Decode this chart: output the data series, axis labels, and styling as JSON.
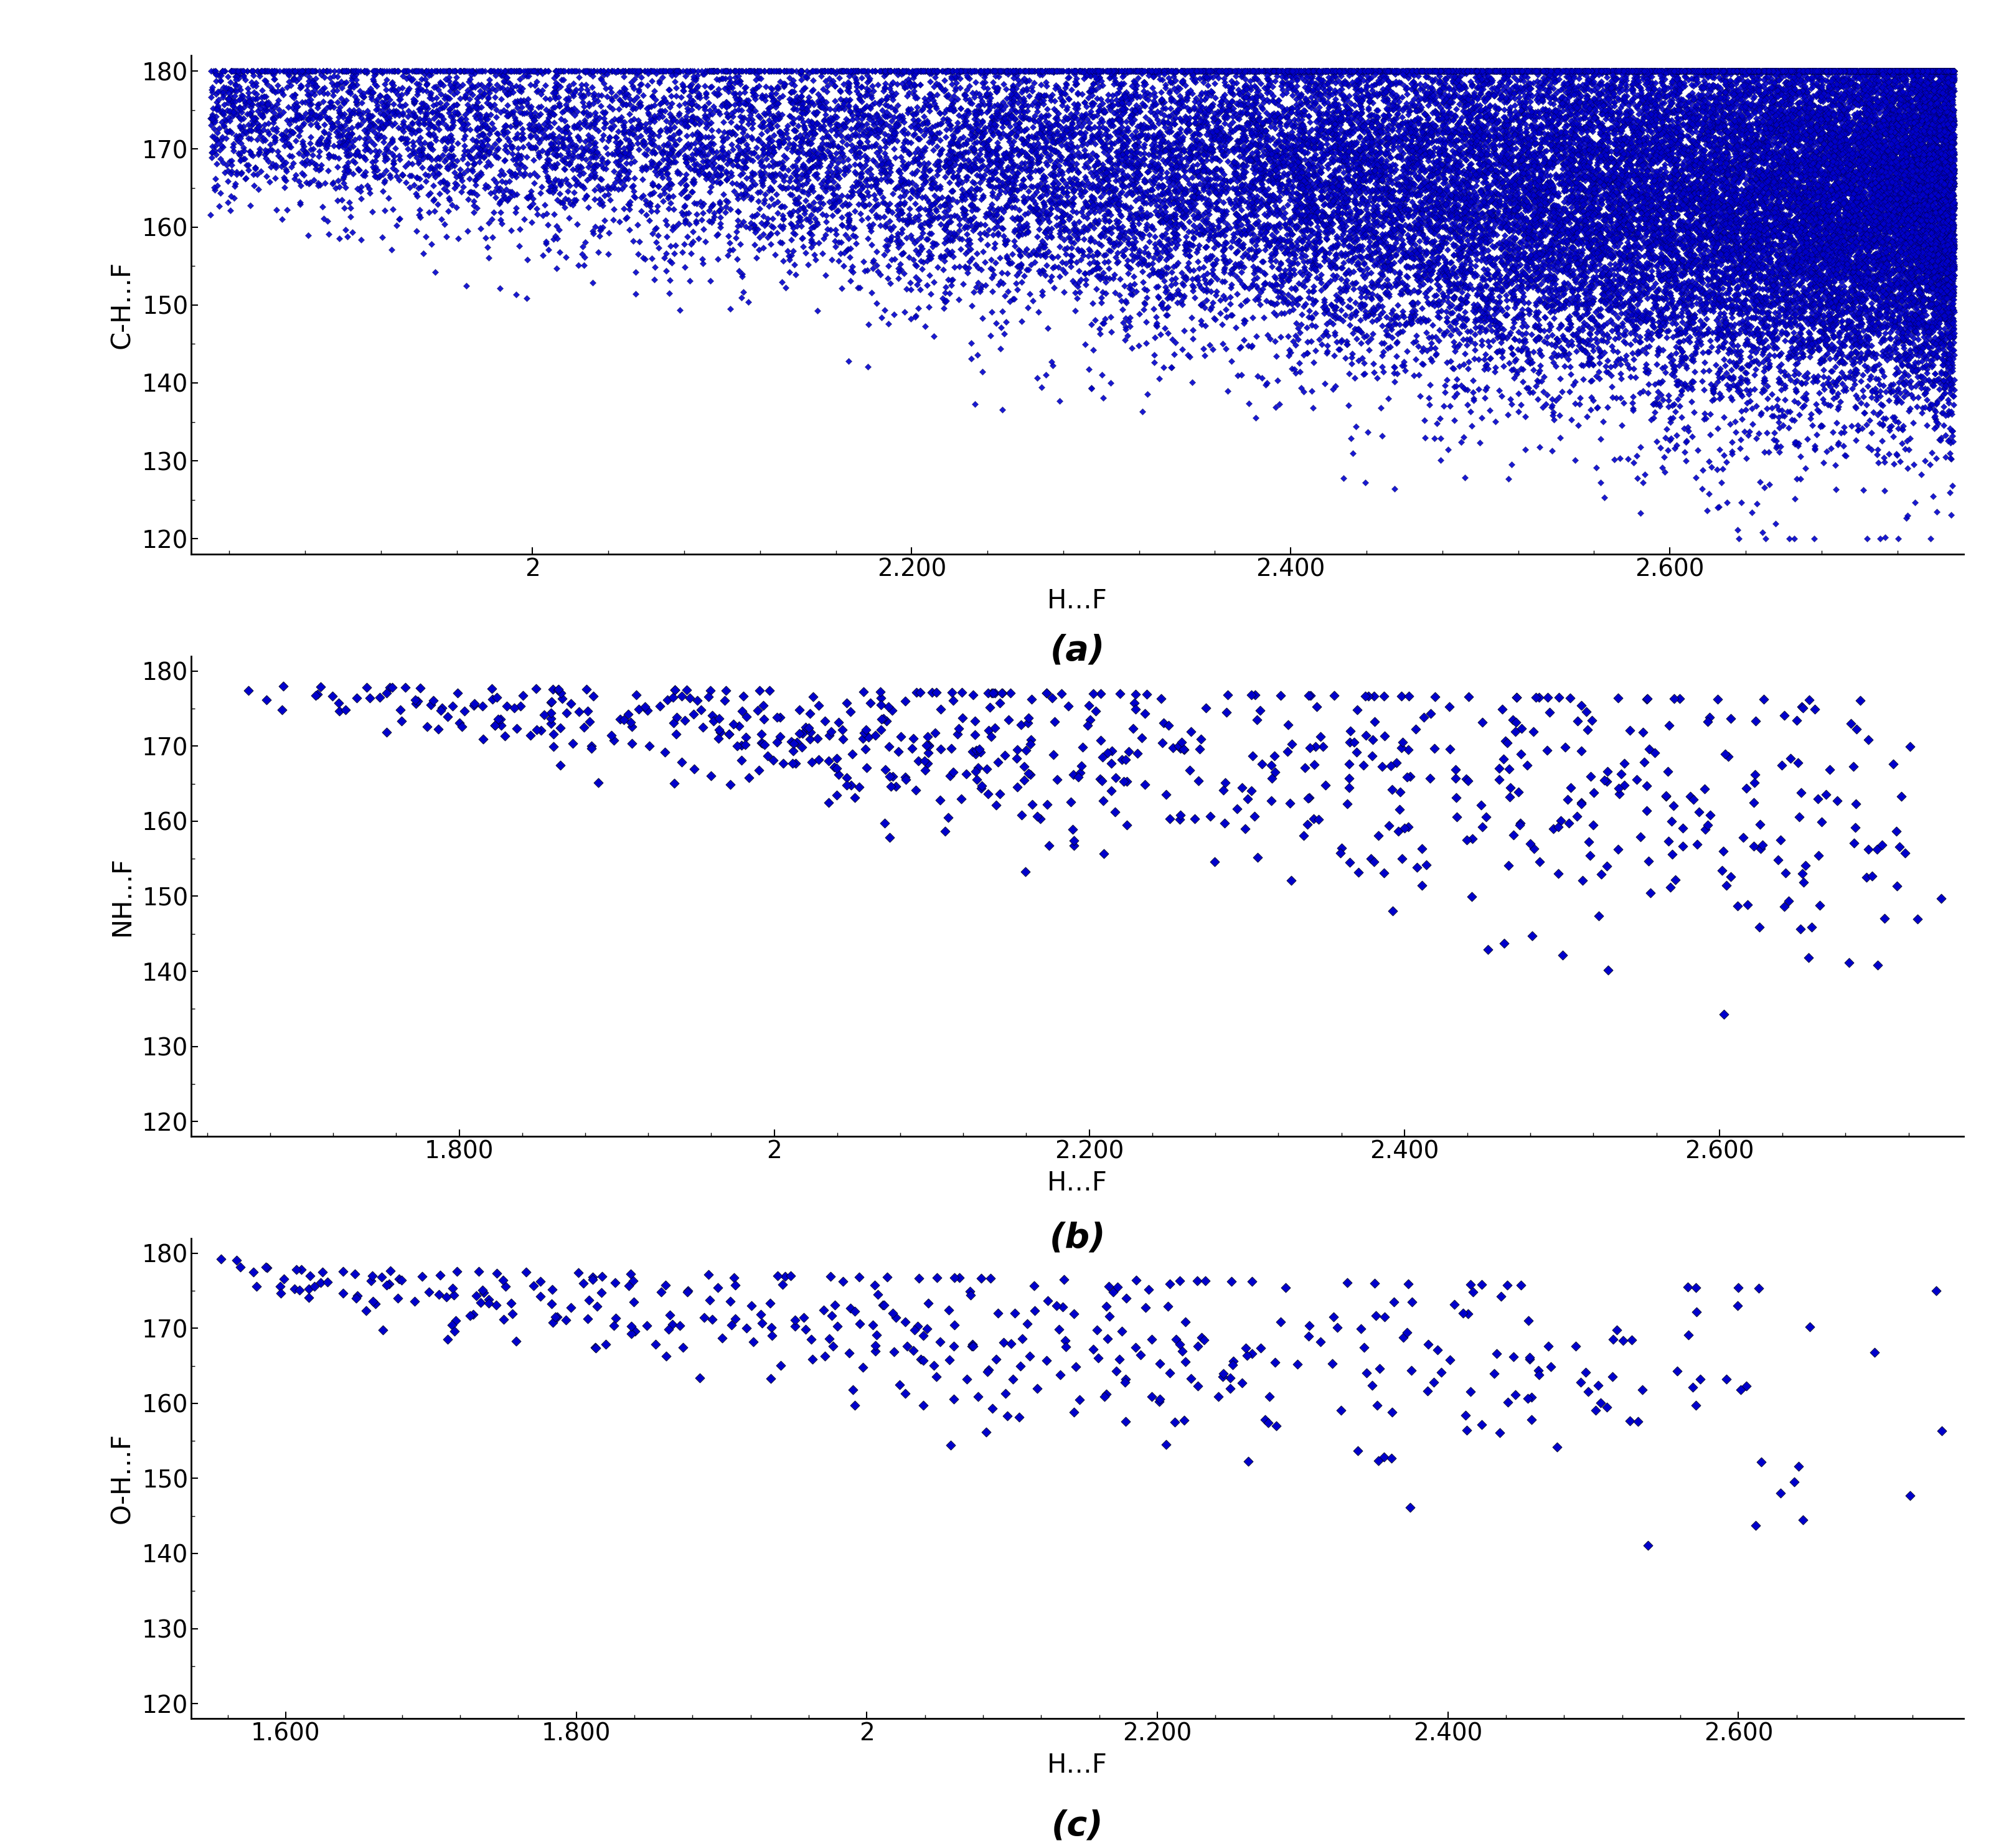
{
  "plot_a": {
    "ylabel": "C-H…F",
    "xlabel": "H…F",
    "xlim": [
      1.82,
      2.755
    ],
    "ylim": [
      118,
      182
    ],
    "yticks": [
      120,
      130,
      140,
      150,
      160,
      170,
      180
    ],
    "xticks": [
      2.0,
      2.2,
      2.4,
      2.6
    ],
    "xtick_labels": [
      "2",
      "2.200",
      "2.400",
      "2.600"
    ],
    "n_points": 35000,
    "x_min": 1.83,
    "x_max": 2.75,
    "label": "(a)"
  },
  "plot_b": {
    "ylabel": "NH…F",
    "xlabel": "H…F",
    "xlim": [
      1.63,
      2.755
    ],
    "ylim": [
      118,
      182
    ],
    "yticks": [
      120,
      130,
      140,
      150,
      160,
      170,
      180
    ],
    "xticks": [
      1.8,
      2.0,
      2.2,
      2.4,
      2.6
    ],
    "xtick_labels": [
      "1.800",
      "2",
      "2.200",
      "2.400",
      "2.600"
    ],
    "n_points": 700,
    "x_min": 1.65,
    "x_max": 2.75,
    "label": "(b)"
  },
  "plot_c": {
    "ylabel": "O-H…F",
    "xlabel": "H…F",
    "xlim": [
      1.535,
      2.755
    ],
    "ylim": [
      118,
      182
    ],
    "yticks": [
      120,
      130,
      140,
      150,
      160,
      170,
      180
    ],
    "xticks": [
      1.6,
      1.8,
      2.0,
      2.2,
      2.4,
      2.6
    ],
    "xtick_labels": [
      "1.600",
      "1.800",
      "2",
      "2.200",
      "2.400",
      "2.600"
    ],
    "n_points": 420,
    "x_min": 1.545,
    "x_max": 2.75,
    "label": "(c)"
  },
  "marker_color": "#0000CC",
  "marker_edge_color": "#000000",
  "marker_size_a": 28,
  "marker_size_bc": 60,
  "marker": "D",
  "bg_color": "#ffffff",
  "axis_color": "#000000",
  "label_fontsize": 30,
  "tick_fontsize": 28,
  "sublabel_fontsize": 40
}
